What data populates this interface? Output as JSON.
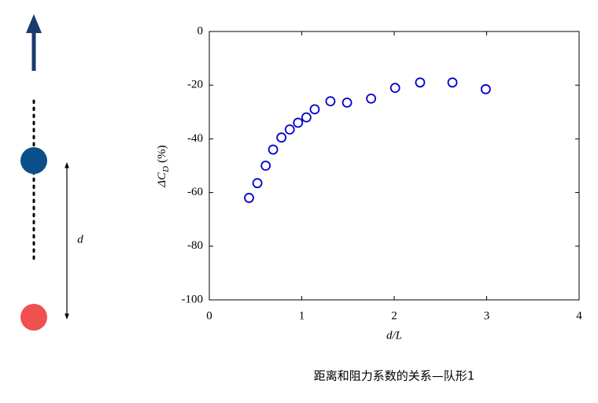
{
  "chart_data": {
    "type": "scatter",
    "x": [
      0.43,
      0.52,
      0.61,
      0.69,
      0.78,
      0.87,
      0.96,
      1.05,
      1.14,
      1.31,
      1.49,
      1.75,
      2.01,
      2.28,
      2.63,
      2.99
    ],
    "values": [
      -62,
      -56.5,
      -50,
      -44,
      -39.5,
      -36.5,
      -34,
      -32,
      -29,
      -26,
      -26.5,
      -25,
      -21,
      -19,
      -19,
      -21.5
    ],
    "color": "#0000cc",
    "xlabel": "d/L",
    "ylabel": [
      "ΔC",
      "D",
      "(%)"
    ],
    "xlim": [
      0,
      4
    ],
    "xticks": [
      0,
      1,
      2,
      3,
      4
    ],
    "ylim": [
      -100,
      0
    ],
    "yticks": [
      0,
      -20,
      -40,
      -60,
      -80,
      -100
    ],
    "caption": "距离和阻力系数的关系—队形1"
  },
  "diagram": {
    "distance_label": "d"
  }
}
